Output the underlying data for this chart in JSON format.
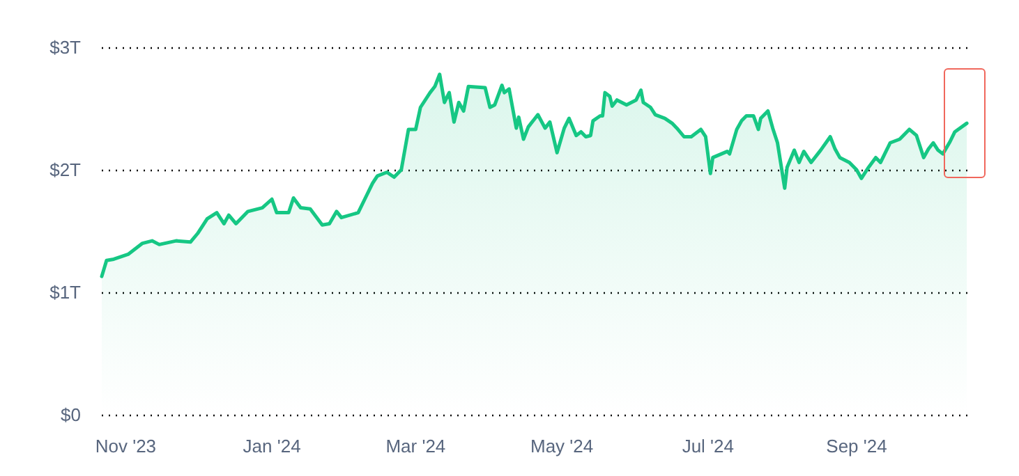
{
  "chart_data": {
    "type": "area",
    "color": "#16c784",
    "x": [
      "2023-10-22",
      "2023-10-24",
      "2023-10-27",
      "2023-11-02",
      "2023-11-08",
      "2023-11-12",
      "2023-11-15",
      "2023-11-22",
      "2023-11-28",
      "2023-12-01",
      "2023-12-05",
      "2023-12-09",
      "2023-12-12",
      "2023-12-14",
      "2023-12-17",
      "2023-12-22",
      "2023-12-28",
      "2024-01-01",
      "2024-01-03",
      "2024-01-08",
      "2024-01-10",
      "2024-01-13",
      "2024-01-17",
      "2024-01-22",
      "2024-01-25",
      "2024-01-28",
      "2024-01-30",
      "2024-02-06",
      "2024-02-09",
      "2024-02-12",
      "2024-02-14",
      "2024-02-18",
      "2024-02-21",
      "2024-02-24",
      "2024-02-27",
      "2024-03-01",
      "2024-03-03",
      "2024-03-07",
      "2024-03-09",
      "2024-03-11",
      "2024-03-13",
      "2024-03-15",
      "2024-03-17",
      "2024-03-19",
      "2024-03-21",
      "2024-03-23",
      "2024-03-30",
      "2024-04-01",
      "2024-04-03",
      "2024-04-06",
      "2024-04-07",
      "2024-04-09",
      "2024-04-12",
      "2024-04-13",
      "2024-04-15",
      "2024-04-17",
      "2024-04-21",
      "2024-04-24",
      "2024-04-26",
      "2024-04-29",
      "2024-05-02",
      "2024-05-04",
      "2024-05-07",
      "2024-05-09",
      "2024-05-11",
      "2024-05-13",
      "2024-05-14",
      "2024-05-17",
      "2024-05-18",
      "2024-05-19",
      "2024-05-21",
      "2024-05-22",
      "2024-05-24",
      "2024-05-28",
      "2024-06-01",
      "2024-06-03",
      "2024-06-04",
      "2024-06-07",
      "2024-06-09",
      "2024-06-13",
      "2024-06-16",
      "2024-06-18",
      "2024-06-21",
      "2024-06-24",
      "2024-06-28",
      "2024-06-30",
      "2024-07-02",
      "2024-07-03",
      "2024-07-09",
      "2024-07-10",
      "2024-07-13",
      "2024-07-15",
      "2024-07-17",
      "2024-07-20",
      "2024-07-22",
      "2024-07-23",
      "2024-07-26",
      "2024-07-28",
      "2024-07-30",
      "2024-08-02",
      "2024-08-03",
      "2024-08-06",
      "2024-08-08",
      "2024-08-10",
      "2024-08-13",
      "2024-08-17",
      "2024-08-21",
      "2024-08-23",
      "2024-08-25",
      "2024-08-29",
      "2024-09-01",
      "2024-09-03",
      "2024-09-06",
      "2024-09-09",
      "2024-09-11",
      "2024-09-15",
      "2024-09-19",
      "2024-09-23",
      "2024-09-26",
      "2024-09-29",
      "2024-10-01",
      "2024-10-03",
      "2024-10-05",
      "2024-10-07",
      "2024-10-10",
      "2024-10-12",
      "2024-10-17"
    ],
    "values": [
      1.13,
      1.26,
      1.27,
      1.31,
      1.4,
      1.42,
      1.39,
      1.42,
      1.41,
      1.48,
      1.6,
      1.65,
      1.56,
      1.63,
      1.56,
      1.66,
      1.69,
      1.76,
      1.65,
      1.65,
      1.77,
      1.69,
      1.68,
      1.55,
      1.56,
      1.66,
      1.61,
      1.65,
      1.77,
      1.89,
      1.95,
      1.98,
      1.94,
      2.0,
      2.33,
      2.33,
      2.51,
      2.63,
      2.68,
      2.78,
      2.55,
      2.63,
      2.39,
      2.55,
      2.48,
      2.68,
      2.67,
      2.51,
      2.53,
      2.69,
      2.63,
      2.66,
      2.34,
      2.43,
      2.25,
      2.35,
      2.45,
      2.34,
      2.39,
      2.14,
      2.34,
      2.42,
      2.28,
      2.31,
      2.27,
      2.28,
      2.4,
      2.44,
      2.44,
      2.63,
      2.6,
      2.52,
      2.57,
      2.53,
      2.57,
      2.65,
      2.55,
      2.51,
      2.45,
      2.42,
      2.38,
      2.34,
      2.27,
      2.27,
      2.33,
      2.27,
      1.97,
      2.1,
      2.15,
      2.13,
      2.33,
      2.4,
      2.44,
      2.44,
      2.33,
      2.42,
      2.48,
      2.34,
      2.22,
      1.85,
      2.02,
      2.16,
      2.06,
      2.15,
      2.06,
      2.16,
      2.27,
      2.17,
      2.1,
      2.06,
      2.0,
      1.93,
      2.02,
      2.1,
      2.06,
      2.22,
      2.25,
      2.33,
      2.28,
      2.1,
      2.17,
      2.22,
      2.16,
      2.13,
      2.23,
      2.31,
      2.38
    ],
    "xlim": [
      "2023-10-22",
      "2024-10-19"
    ],
    "xticks": [
      {
        "value": "2023-11-01",
        "label": "Nov '23"
      },
      {
        "value": "2024-01-01",
        "label": "Jan '24"
      },
      {
        "value": "2024-03-01",
        "label": "Mar '24"
      },
      {
        "value": "2024-05-01",
        "label": "May '24"
      },
      {
        "value": "2024-07-01",
        "label": "Jul '24"
      },
      {
        "value": "2024-09-01",
        "label": "Sep '24"
      }
    ],
    "ylim": [
      0,
      3
    ],
    "yticks": [
      {
        "value": 0,
        "label": "$0"
      },
      {
        "value": 1,
        "label": "$1T"
      },
      {
        "value": 2,
        "label": "$2T"
      },
      {
        "value": 3,
        "label": "$3T"
      }
    ],
    "grid": "y",
    "marker": "none",
    "line_style": "solid"
  }
}
